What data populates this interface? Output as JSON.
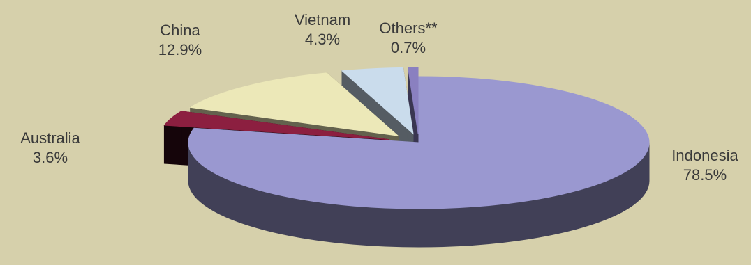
{
  "chart_data": {
    "type": "pie",
    "categories": [
      "Indonesia",
      "Australia",
      "China",
      "Vietnam",
      "Others**"
    ],
    "values": [
      78.5,
      3.6,
      12.9,
      4.3,
      0.7
    ],
    "value_labels": [
      "78.5%",
      "3.6%",
      "12.9%",
      "4.3%",
      "0.7%"
    ],
    "colors": [
      "#9a98d0",
      "#8c1f40",
      "#ece8b8",
      "#cadcec",
      "#8a80c0"
    ]
  }
}
